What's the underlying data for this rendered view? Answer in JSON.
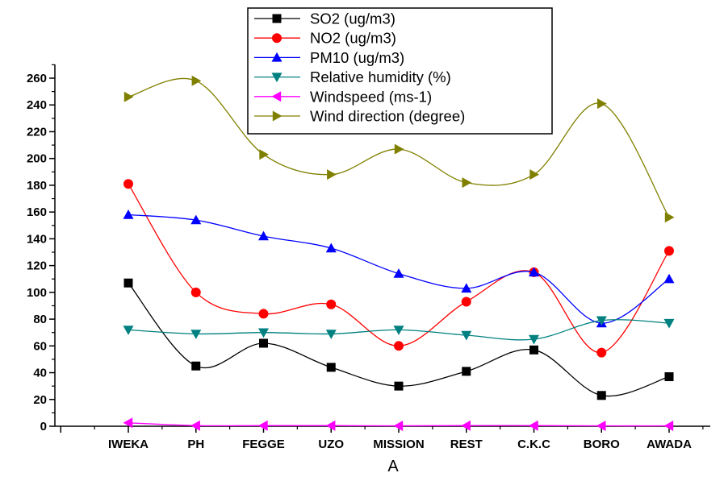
{
  "chart_data": {
    "type": "line",
    "xlabel": "A",
    "ylabel": "",
    "categories": [
      "IWEKA",
      "PH",
      "FEGGE",
      "UZO",
      "MISSION",
      "REST",
      "C.K.C",
      "BORO",
      "AWADA"
    ],
    "ylim": [
      0,
      270
    ],
    "yticks": [
      0,
      20,
      40,
      60,
      80,
      100,
      120,
      140,
      160,
      180,
      200,
      220,
      240,
      260
    ],
    "grid": false,
    "legend_position": "top-center",
    "series": [
      {
        "name": "SO2 (ug/m3)",
        "color": "#000000",
        "marker": "square",
        "values": [
          107,
          45,
          62,
          44,
          30,
          41,
          57,
          23,
          37
        ]
      },
      {
        "name": "NO2 (ug/m3)",
        "color": "#ff0000",
        "marker": "circle",
        "values": [
          181,
          100,
          84,
          91,
          60,
          93,
          115,
          55,
          131
        ]
      },
      {
        "name": "PM10 (ug/m3)",
        "color": "#0000ff",
        "marker": "triangle-up",
        "values": [
          158,
          154,
          142,
          133,
          114,
          103,
          115,
          77,
          110
        ]
      },
      {
        "name": "Relative humidity (%)",
        "color": "#008080",
        "marker": "triangle-down",
        "values": [
          72,
          69,
          70,
          69,
          72,
          68,
          65,
          79,
          77
        ]
      },
      {
        "name": "Windspeed (ms-1)",
        "color": "#ff00ff",
        "marker": "triangle-left",
        "values": [
          2.5,
          0.5,
          0.5,
          0.5,
          0.3,
          0.5,
          0.5,
          0.3,
          0.3
        ]
      },
      {
        "name": "Wind direction (degree)",
        "color": "#808000",
        "marker": "triangle-right",
        "values": [
          246,
          258,
          203,
          188,
          207,
          182,
          188,
          241,
          156
        ]
      }
    ]
  }
}
